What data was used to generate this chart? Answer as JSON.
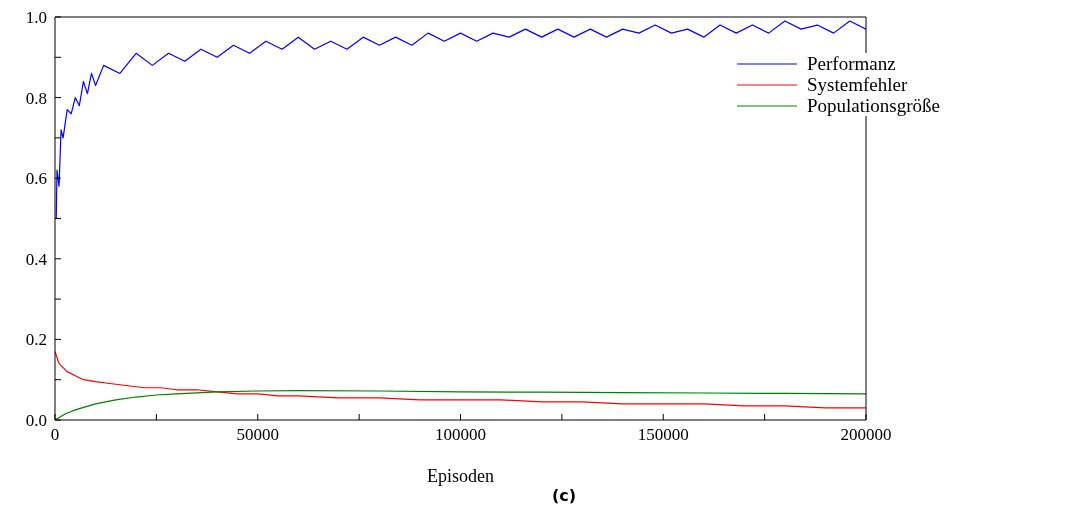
{
  "chart_data": {
    "type": "line",
    "xlabel": "Episoden",
    "annotations": [
      "(c)"
    ],
    "xlim": [
      0,
      200000
    ],
    "xticks": [
      0,
      {
        "value": 25000,
        "label": null
      },
      50000,
      {
        "value": 75000,
        "label": null
      },
      100000,
      {
        "value": 125000,
        "label": null
      },
      150000,
      {
        "value": 175000,
        "label": null
      },
      200000
    ],
    "ylim": [
      0,
      1
    ],
    "yticks": [
      {
        "value": 0,
        "label": "0.0"
      },
      {
        "value": 0.1,
        "label": null
      },
      {
        "value": 0.2,
        "label": "0.2"
      },
      {
        "value": 0.3,
        "label": null
      },
      {
        "value": 0.4,
        "label": "0.4"
      },
      {
        "value": 0.5,
        "label": null
      },
      {
        "value": 0.6,
        "label": "0.6"
      },
      {
        "value": 0.7,
        "label": null
      },
      {
        "value": 0.8,
        "label": "0.8"
      },
      {
        "value": 0.9,
        "label": null
      },
      {
        "value": 1,
        "label": "1.0"
      }
    ],
    "grid": false,
    "legend": "top right",
    "marker": "none",
    "line_style": "solid",
    "series": [
      {
        "name": "Performanz",
        "color": "#0000ff",
        "x": [
          300,
          500,
          1000,
          1500,
          2000,
          3000,
          4000,
          5000,
          6000,
          7000,
          8000,
          9000,
          10000,
          12000,
          16000,
          20000,
          24000,
          28000,
          32000,
          36000,
          40000,
          44000,
          48000,
          52000,
          56000,
          60000,
          64000,
          68000,
          72000,
          76000,
          80000,
          84000,
          88000,
          92000,
          96000,
          100000,
          104000,
          108000,
          112000,
          116000,
          120000,
          124000,
          128000,
          132000,
          136000,
          140000,
          144000,
          148000,
          152000,
          156000,
          160000,
          164000,
          168000,
          172000,
          176000,
          180000,
          184000,
          188000,
          192000,
          196000,
          200000
        ],
        "values": [
          0.5,
          0.62,
          0.58,
          0.72,
          0.7,
          0.77,
          0.76,
          0.8,
          0.78,
          0.84,
          0.81,
          0.86,
          0.83,
          0.88,
          0.86,
          0.91,
          0.88,
          0.91,
          0.89,
          0.92,
          0.9,
          0.93,
          0.91,
          0.94,
          0.92,
          0.95,
          0.92,
          0.94,
          0.92,
          0.95,
          0.93,
          0.95,
          0.93,
          0.96,
          0.94,
          0.96,
          0.94,
          0.96,
          0.95,
          0.97,
          0.95,
          0.97,
          0.95,
          0.97,
          0.95,
          0.97,
          0.96,
          0.98,
          0.96,
          0.97,
          0.95,
          0.98,
          0.96,
          0.98,
          0.96,
          0.99,
          0.97,
          0.98,
          0.96,
          0.99,
          0.97
        ]
      },
      {
        "name": "Systemfehler",
        "color": "#ff0000",
        "x": [
          0,
          1000,
          2000,
          3000,
          5000,
          7000,
          10000,
          14000,
          18000,
          22000,
          26000,
          30000,
          35000,
          40000,
          45000,
          50000,
          55000,
          60000,
          70000,
          80000,
          90000,
          100000,
          110000,
          120000,
          130000,
          140000,
          150000,
          160000,
          170000,
          180000,
          190000,
          200000
        ],
        "values": [
          0.17,
          0.14,
          0.13,
          0.12,
          0.11,
          0.1,
          0.095,
          0.09,
          0.085,
          0.08,
          0.08,
          0.075,
          0.075,
          0.07,
          0.065,
          0.065,
          0.06,
          0.06,
          0.055,
          0.055,
          0.05,
          0.05,
          0.05,
          0.045,
          0.045,
          0.04,
          0.04,
          0.04,
          0.035,
          0.035,
          0.03,
          0.03
        ]
      },
      {
        "name": "Populationsgröße",
        "color": "#008000",
        "x": [
          0,
          2500,
          5000,
          10000,
          15000,
          20000,
          25000,
          30000,
          40000,
          50000,
          60000,
          80000,
          100000,
          120000,
          140000,
          160000,
          180000,
          200000
        ],
        "values": [
          0,
          0.015,
          0.025,
          0.04,
          0.05,
          0.057,
          0.062,
          0.065,
          0.07,
          0.072,
          0.073,
          0.072,
          0.07,
          0.069,
          0.068,
          0.067,
          0.066,
          0.065
        ]
      }
    ]
  }
}
